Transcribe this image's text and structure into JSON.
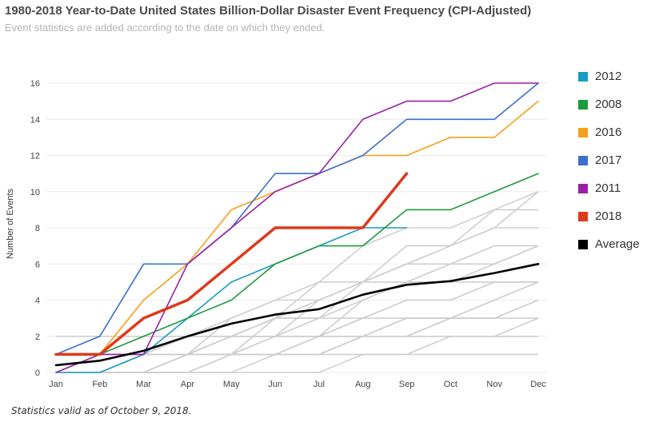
{
  "header": {
    "title": "1980-2018 Year-to-Date United States Billion-Dollar Disaster Event Frequency (CPI-Adjusted)",
    "subtitle": "Event statistics are added according to the date on which they ended."
  },
  "footnote": "Statistics valid as of October 9, 2018.",
  "chart_data": {
    "type": "line",
    "title": "1980-2018 Year-to-Date United States Billion-Dollar Disaster Event Frequency (CPI-Adjusted)",
    "xlabel": "",
    "ylabel": "Number of Events",
    "categories": [
      "Jan",
      "Feb",
      "Mar",
      "Apr",
      "May",
      "Jun",
      "Jul",
      "Aug",
      "Sep",
      "Oct",
      "Nov",
      "Dec"
    ],
    "ylim": [
      0,
      16
    ],
    "yticks": [
      "0",
      "2",
      "4",
      "6",
      "8",
      "10",
      "12",
      "14",
      "16"
    ],
    "grid": true,
    "legend_position": "right",
    "series": [
      {
        "name": "2012",
        "color": "#1a9bc4",
        "values": [
          0,
          0,
          1,
          3,
          5,
          6,
          7,
          8,
          8,
          null,
          null,
          null
        ]
      },
      {
        "name": "2008",
        "color": "#1e9b3a",
        "values": [
          1,
          1,
          2,
          3,
          4,
          6,
          7,
          7,
          9,
          9,
          10,
          11
        ]
      },
      {
        "name": "2016",
        "color": "#f5a01a",
        "values": [
          1,
          1,
          4,
          6,
          9,
          10,
          11,
          12,
          12,
          13,
          13,
          15
        ]
      },
      {
        "name": "2017",
        "color": "#3a6fcf",
        "values": [
          1,
          2,
          6,
          6,
          8,
          11,
          11,
          12,
          14,
          14,
          14,
          16
        ]
      },
      {
        "name": "2011",
        "color": "#9b1ea6",
        "values": [
          0,
          1,
          1,
          6,
          8,
          10,
          11,
          14,
          15,
          15,
          16,
          16
        ]
      },
      {
        "name": "2018",
        "color": "#dd3a1a",
        "values": [
          1,
          1,
          3,
          4,
          6,
          8,
          8,
          8,
          11,
          null,
          null,
          null
        ]
      },
      {
        "name": "Average",
        "color": "#000000",
        "values": [
          0.4,
          0.65,
          1.2,
          2.0,
          2.7,
          3.2,
          3.5,
          4.3,
          4.85,
          5.05,
          5.5,
          6.0
        ]
      }
    ],
    "background_series": [
      [
        0,
        0,
        0,
        0,
        1,
        1,
        2,
        3,
        4,
        4,
        5,
        5
      ],
      [
        0,
        1,
        1,
        1,
        1,
        2,
        2,
        2,
        3,
        3,
        4,
        5
      ],
      [
        0,
        0,
        0,
        1,
        2,
        3,
        4,
        5,
        6,
        7,
        8,
        10
      ],
      [
        0,
        0,
        0,
        0,
        0,
        0,
        0,
        1,
        1,
        2,
        2,
        3
      ],
      [
        1,
        1,
        1,
        2,
        3,
        4,
        5,
        5,
        6,
        6,
        6,
        7
      ],
      [
        0,
        0,
        1,
        1,
        2,
        2,
        3,
        4,
        5,
        5,
        5,
        5
      ],
      [
        0,
        0,
        0,
        1,
        1,
        3,
        3,
        5,
        6,
        7,
        9,
        10
      ],
      [
        1,
        1,
        1,
        1,
        1,
        1,
        2,
        3,
        3,
        3,
        4,
        5
      ],
      [
        0,
        0,
        0,
        0,
        1,
        1,
        1,
        2,
        2,
        3,
        3,
        4
      ],
      [
        0,
        0,
        1,
        2,
        2,
        3,
        3,
        3,
        4,
        4,
        5,
        5
      ],
      [
        0,
        0,
        1,
        1,
        3,
        4,
        4,
        5,
        7,
        7,
        8,
        8
      ],
      [
        1,
        1,
        1,
        1,
        1,
        1,
        1,
        2,
        2,
        2,
        2,
        2
      ],
      [
        0,
        0,
        0,
        1,
        2,
        2,
        4,
        5,
        5,
        6,
        7,
        7
      ],
      [
        1,
        1,
        1,
        1,
        2,
        2,
        2,
        4,
        5,
        5,
        6,
        7
      ],
      [
        0,
        1,
        1,
        1,
        1,
        2,
        2,
        2,
        2,
        3,
        3,
        4
      ],
      [
        0,
        0,
        0,
        0,
        0,
        1,
        1,
        2,
        3,
        3,
        3,
        3
      ],
      [
        2,
        2,
        2,
        2,
        2,
        2,
        2,
        2,
        2,
        2,
        2,
        2
      ],
      [
        0,
        0,
        0,
        1,
        2,
        3,
        5,
        7,
        8,
        8,
        9,
        9
      ],
      [
        1,
        1,
        1,
        1,
        1,
        1,
        1,
        1,
        1,
        1,
        1,
        1
      ]
    ]
  }
}
